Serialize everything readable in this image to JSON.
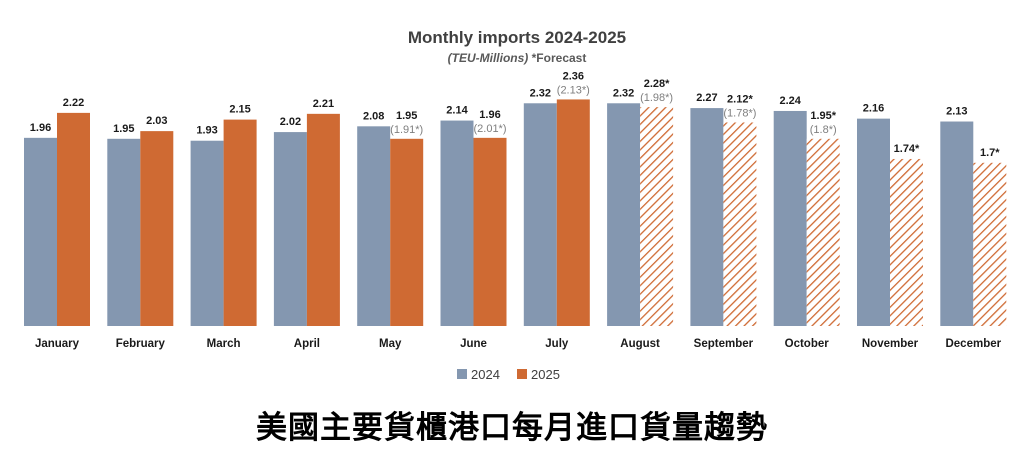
{
  "chart_data": {
    "type": "bar",
    "title": "Monthly imports 2024-2025",
    "subtitle_unit": "(TEU-Millions)",
    "subtitle_note": "*Forecast",
    "xlabel": "",
    "ylabel": "",
    "ylim": [
      0,
      2.5
    ],
    "grid": false,
    "legend_position": "bottom-center",
    "categories": [
      "January",
      "February",
      "March",
      "April",
      "May",
      "June",
      "July",
      "August",
      "September",
      "October",
      "November",
      "December"
    ],
    "series": [
      {
        "name": "2024",
        "color": "#8497b0",
        "values": [
          1.96,
          1.95,
          1.93,
          2.02,
          2.08,
          2.14,
          2.32,
          2.32,
          2.27,
          2.24,
          2.16,
          2.13
        ],
        "labels": [
          "1.96",
          "1.95",
          "1.93",
          "2.02",
          "2.08",
          "2.14",
          "2.32",
          "2.32",
          "2.27",
          "2.24",
          "2.16",
          "2.13"
        ]
      },
      {
        "name": "2025",
        "color": "#cf6a33",
        "values": [
          2.22,
          2.03,
          2.15,
          2.21,
          1.95,
          1.96,
          2.36,
          2.28,
          2.12,
          1.95,
          1.74,
          1.7
        ],
        "labels": [
          "2.22",
          "2.03",
          "2.15",
          "2.21",
          "1.95",
          "1.96",
          "2.36",
          "2.28*",
          "2.12*",
          "1.95*",
          "1.74*",
          "1.7*"
        ],
        "sublabels": [
          "",
          "",
          "",
          "",
          "(1.91*)",
          "(2.01*)",
          "(2.13*)",
          "(1.98*)",
          "(1.78*)",
          "(1.8*)",
          "",
          ""
        ],
        "forecast": [
          false,
          false,
          false,
          false,
          false,
          false,
          false,
          true,
          true,
          true,
          true,
          true
        ]
      }
    ]
  },
  "caption": "美國主要貨櫃港口每月進口貨量趨勢"
}
